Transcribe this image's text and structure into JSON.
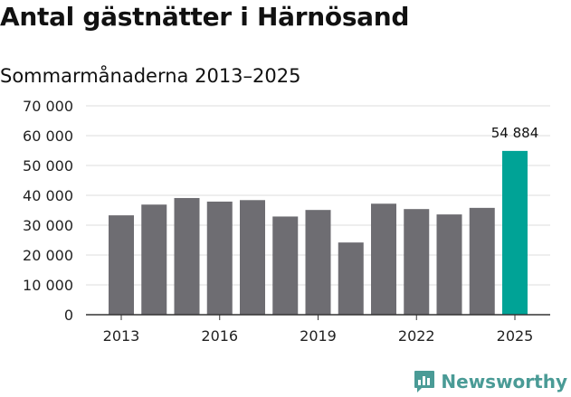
{
  "header": {
    "title": "Antal gästnätter i Härnösand",
    "subtitle": "Sommarmånaderna 2013–2025"
  },
  "brand": {
    "name": "Newsworthy",
    "icon": "newsworthy-logo-icon",
    "color": "#4a9b96"
  },
  "chart_data": {
    "type": "bar",
    "title": "Antal gästnätter i Härnösand",
    "subtitle": "Sommarmånaderna 2013–2025",
    "xlabel": "",
    "ylabel": "",
    "categories": [
      "2013",
      "2014",
      "2015",
      "2016",
      "2017",
      "2018",
      "2019",
      "2020",
      "2021",
      "2022",
      "2023",
      "2024",
      "2025"
    ],
    "values": [
      33300,
      36900,
      39100,
      37900,
      38400,
      32900,
      35100,
      24200,
      37200,
      35400,
      33600,
      35800,
      54884
    ],
    "x_ticks": [
      "2013",
      "2016",
      "2019",
      "2022",
      "2025"
    ],
    "y_ticks": [
      0,
      10000,
      20000,
      30000,
      40000,
      50000,
      60000,
      70000
    ],
    "y_tick_labels": [
      "0",
      "10 000",
      "20 000",
      "30 000",
      "40 000",
      "50 000",
      "60 000",
      "70 000"
    ],
    "ylim": [
      0,
      70000
    ],
    "grid": "horizontal",
    "legend": "none",
    "highlight_index": 12,
    "data_labels": [
      {
        "index": 12,
        "text": "54 884"
      }
    ],
    "colors": {
      "bar": "#6e6d72",
      "highlight": "#00a396",
      "grid": "#dddddd",
      "axis": "#333333"
    }
  }
}
